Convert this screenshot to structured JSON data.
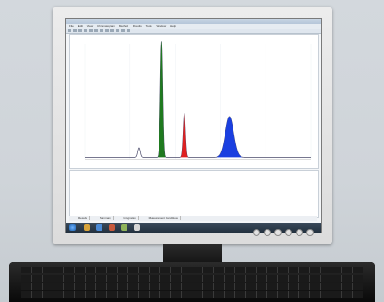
{
  "screen": {
    "window_title": "",
    "menu_items": [
      "File",
      "Edit",
      "View",
      "Chromatogram",
      "Method",
      "Results",
      "Tools",
      "Window",
      "Help"
    ],
    "tabs": [
      "Results",
      "Summary",
      "Integration",
      "Measurement Conditions"
    ],
    "chart_axis_label": "",
    "table_rows": [
      [
        "",
        "",
        "",
        "",
        "",
        ""
      ],
      [
        "",
        "",
        "",
        "",
        "",
        ""
      ],
      [
        "",
        "",
        "",
        "",
        "",
        ""
      ],
      [
        "",
        "",
        "",
        "",
        "",
        ""
      ],
      [
        "",
        "",
        "",
        "",
        "",
        ""
      ]
    ]
  },
  "chart_data": {
    "type": "line",
    "peaks": [
      {
        "position": 1.2,
        "height": 0.08,
        "color": "#555555"
      },
      {
        "position": 1.7,
        "height": 1.0,
        "color": "#1f7a1f"
      },
      {
        "position": 2.2,
        "height": 0.38,
        "color": "#e02020"
      },
      {
        "position": 3.2,
        "height": 0.35,
        "color": "#1a3fe0"
      }
    ],
    "xlim": [
      0,
      5
    ]
  },
  "colors": {
    "peak_green": "#1f7a1f",
    "peak_red": "#e02020",
    "peak_blue": "#1a3fe0",
    "taskbar": "#2a3a4a"
  }
}
